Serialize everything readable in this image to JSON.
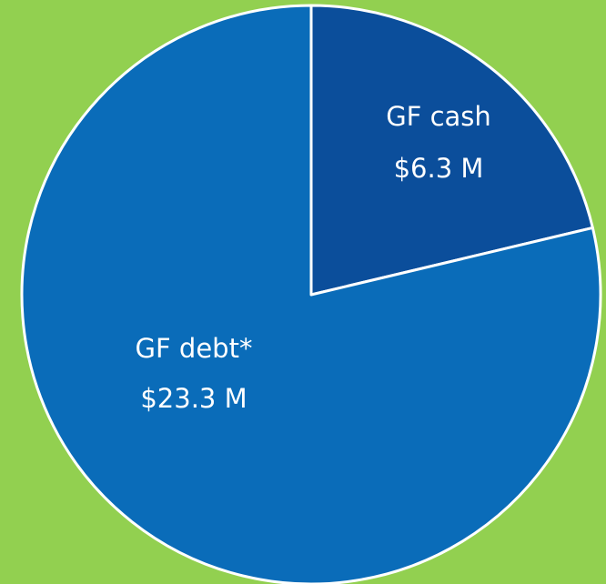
{
  "chart_data": {
    "type": "pie",
    "categories": [
      "GF cash",
      "GF debt*"
    ],
    "values": [
      6.3,
      23.3
    ],
    "value_labels": [
      "$6.3 M",
      "$23.3 M"
    ],
    "colors": [
      "#0b4e9b",
      "#0a6cb9"
    ]
  }
}
